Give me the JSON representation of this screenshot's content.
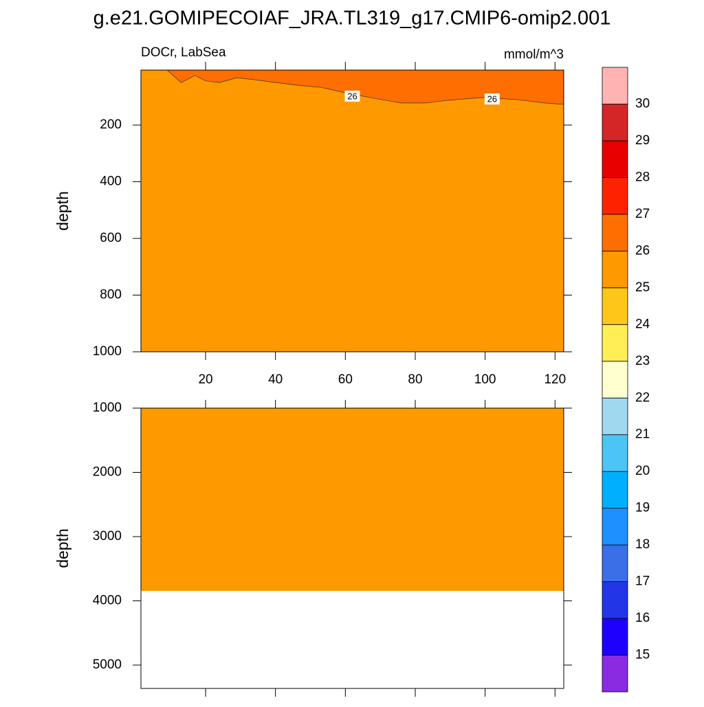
{
  "title": "g.e21.GOMIPECOIAF_JRA.TL319_g17.CMIP6-omip2.001",
  "chart_data": [
    {
      "type": "contour",
      "left_label": "DOCr, LabSea",
      "right_label": "mmol/m^3",
      "ylabel": "depth",
      "xlim": [
        1.5,
        122.5
      ],
      "xticks": [
        20,
        40,
        60,
        80,
        100,
        120
      ],
      "xtick_labels": true,
      "ylim": [
        1000,
        6
      ],
      "yticks": [
        200,
        400,
        600,
        800,
        1000
      ],
      "fill": {
        "color": "#ff9900",
        "depth_max": 1000
      },
      "contour": {
        "level": 26,
        "color": "#ff6e00",
        "x": [
          9,
          13,
          17,
          20,
          24,
          29,
          34,
          40,
          46,
          53,
          60,
          68,
          76,
          83,
          89,
          99,
          109,
          117,
          122.5
        ],
        "depth": [
          6,
          50,
          25,
          44,
          50,
          33,
          40,
          50,
          59,
          67,
          86,
          105,
          122,
          122,
          113,
          103,
          110,
          122,
          127
        ]
      },
      "contour_labels": [
        {
          "x": 62,
          "depth": 98,
          "value": 26
        },
        {
          "x": 102,
          "depth": 108,
          "value": 26
        }
      ]
    },
    {
      "type": "contour",
      "ylabel": "depth",
      "xlim": [
        1.5,
        122.5
      ],
      "xticks": [
        20,
        40,
        60,
        80,
        100,
        120
      ],
      "xtick_labels": false,
      "ylim": [
        5364,
        1000
      ],
      "yticks": [
        1000,
        2000,
        3000,
        4000,
        5000
      ],
      "fill": {
        "color": "#ff9900",
        "depth_max": 3845
      }
    }
  ],
  "colorbar": {
    "levels": [
      15,
      16,
      17,
      18,
      19,
      20,
      21,
      22,
      23,
      24,
      25,
      26,
      27,
      28,
      29,
      30
    ],
    "colors": [
      "#8a2be2",
      "#1e00ff",
      "#2236e8",
      "#3a6fe8",
      "#1e90ff",
      "#00b0ff",
      "#4cc4f5",
      "#a0d8f0",
      "#ffffd0",
      "#ffee55",
      "#ffc61a",
      "#ff9900",
      "#ff6e00",
      "#ff2200",
      "#e60000",
      "#d42626",
      "#ffb3b3"
    ]
  }
}
